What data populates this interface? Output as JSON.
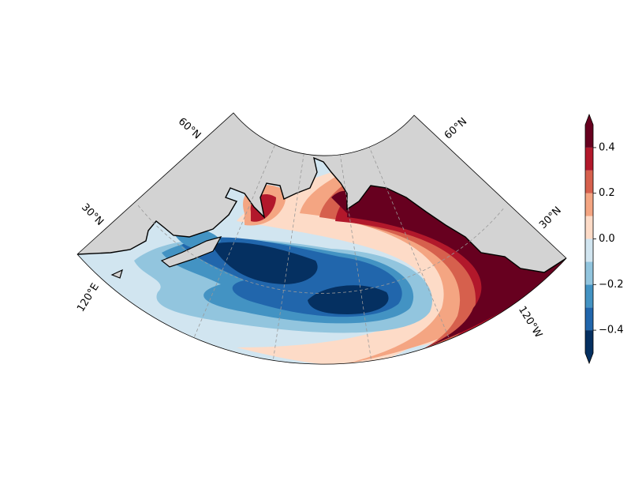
{
  "map": {
    "labels": {
      "lat_left_60": "60°N",
      "lat_right_60": "60°N",
      "lat_left_30": "30°N",
      "lat_right_30": "30°N",
      "lon_left": "120°E",
      "lon_right": "120°W"
    }
  },
  "colorbar": {
    "lim": [
      -0.5,
      0.5
    ],
    "levels": [
      -0.5,
      -0.4,
      -0.3,
      -0.2,
      -0.1,
      0,
      0.1,
      0.2,
      0.3,
      0.4,
      0.5
    ],
    "colors": [
      "#053061",
      "#2166ac",
      "#4393c3",
      "#92c5de",
      "#d1e5f0",
      "#fddbc7",
      "#f4a582",
      "#d6604d",
      "#b2182b",
      "#67001f"
    ],
    "under_color": "#053061",
    "over_color": "#67001f",
    "ticks": [
      {
        "value": -0.4,
        "label": "−0.4"
      },
      {
        "value": -0.2,
        "label": "−0.2"
      },
      {
        "value": 0,
        "label": "0.0"
      },
      0.2,
      0.4
    ]
  }
}
